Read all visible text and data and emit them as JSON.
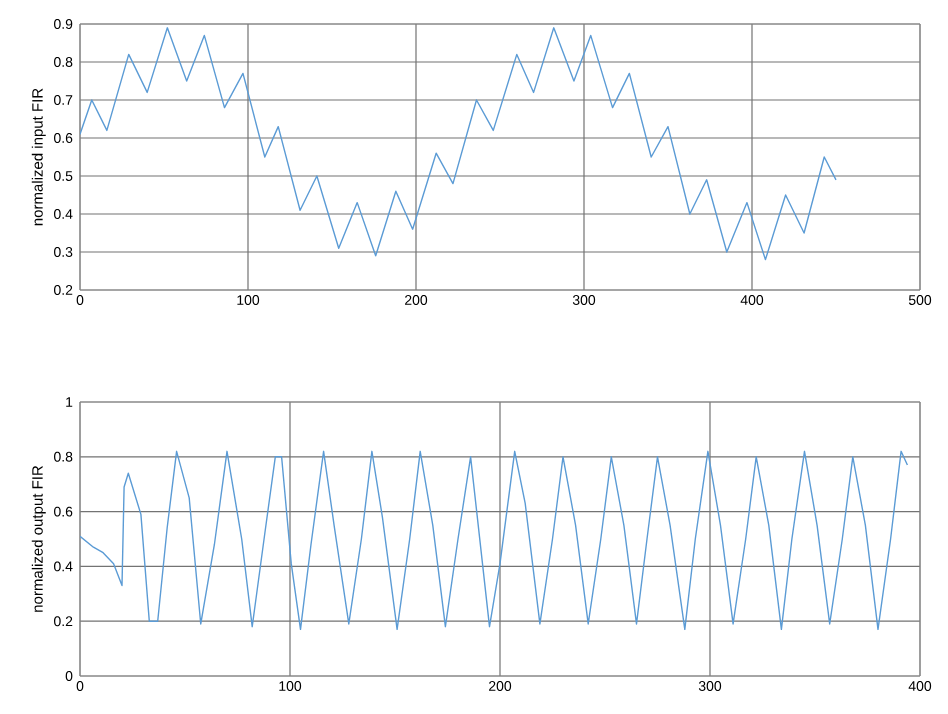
{
  "chart_data": [
    {
      "type": "line",
      "ylabel": "normalized input FIR",
      "color": "#5b9bd5",
      "grid": true,
      "line_style": "solid",
      "x": [
        0,
        7,
        16,
        29,
        40,
        52,
        63.5,
        74,
        86,
        97,
        110,
        118,
        131,
        141,
        154,
        165,
        176,
        188,
        198,
        212,
        222,
        236,
        246,
        260,
        270,
        282,
        294,
        304,
        317,
        327,
        340,
        350,
        363,
        373,
        385,
        397,
        408,
        420,
        431,
        443,
        450
      ],
      "values": [
        0.61,
        0.7,
        0.62,
        0.82,
        0.72,
        0.89,
        0.75,
        0.87,
        0.68,
        0.77,
        0.55,
        0.63,
        0.41,
        0.5,
        0.31,
        0.43,
        0.29,
        0.46,
        0.36,
        0.56,
        0.48,
        0.7,
        0.62,
        0.82,
        0.72,
        0.89,
        0.75,
        0.87,
        0.68,
        0.77,
        0.55,
        0.63,
        0.4,
        0.49,
        0.3,
        0.43,
        0.28,
        0.45,
        0.35,
        0.55,
        0.49
      ],
      "xlim": [
        0,
        500
      ],
      "xticks": [
        0,
        100,
        200,
        300,
        400,
        500
      ],
      "ylim": [
        0.2,
        0.9
      ],
      "yticks": [
        0.2,
        0.3,
        0.4,
        0.5,
        0.6,
        0.7,
        0.8,
        0.9
      ]
    },
    {
      "type": "line",
      "ylabel": "normalized output FIR",
      "color": "#5b9bd5",
      "grid": true,
      "line_style": "solid",
      "x": [
        0,
        6.4,
        11,
        16,
        20,
        21,
        23,
        29,
        33,
        37,
        41.5,
        46,
        52,
        57.5,
        64,
        70,
        77,
        82,
        88,
        93,
        96,
        100.6,
        105,
        110,
        116,
        121,
        128,
        134,
        139,
        144,
        151,
        157,
        162,
        168,
        174,
        180,
        186,
        195,
        200,
        207,
        212,
        219,
        225,
        230,
        236,
        242,
        248,
        253,
        259,
        265,
        270,
        275,
        281,
        288,
        293,
        299,
        305,
        311,
        317,
        322,
        328,
        334,
        339,
        345,
        351,
        357,
        363,
        368,
        374,
        380,
        386,
        391,
        394
      ],
      "values": [
        0.51,
        0.47,
        0.45,
        0.41,
        0.33,
        0.69,
        0.74,
        0.59,
        0.2,
        0.2,
        0.54,
        0.82,
        0.65,
        0.19,
        0.48,
        0.82,
        0.5,
        0.18,
        0.52,
        0.8,
        0.8,
        0.41,
        0.17,
        0.48,
        0.82,
        0.55,
        0.19,
        0.5,
        0.82,
        0.58,
        0.17,
        0.5,
        0.82,
        0.55,
        0.18,
        0.5,
        0.8,
        0.18,
        0.41,
        0.82,
        0.63,
        0.19,
        0.5,
        0.8,
        0.55,
        0.19,
        0.5,
        0.8,
        0.55,
        0.19,
        0.5,
        0.8,
        0.55,
        0.17,
        0.5,
        0.82,
        0.55,
        0.19,
        0.5,
        0.8,
        0.55,
        0.17,
        0.5,
        0.82,
        0.55,
        0.19,
        0.5,
        0.8,
        0.55,
        0.17,
        0.5,
        0.82,
        0.77
      ],
      "xlim": [
        0,
        400
      ],
      "xticks": [
        0,
        100,
        200,
        300,
        400
      ],
      "ylim": [
        0,
        1
      ],
      "yticks": [
        0,
        0.2,
        0.4,
        0.6,
        0.8,
        1
      ]
    }
  ]
}
